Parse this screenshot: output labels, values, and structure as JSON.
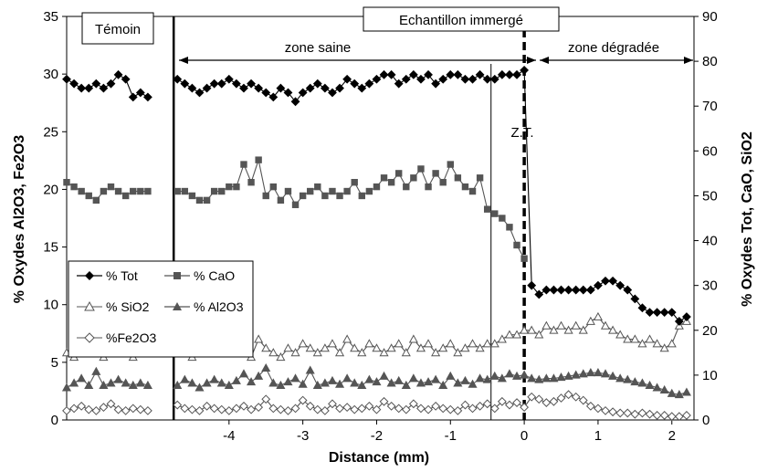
{
  "chart_data": {
    "type": "line",
    "title": "",
    "xlabel": "Distance (mm)",
    "ylabel_left": "% Oxydes Al2O3, Fe2O3",
    "ylabel_right": "% Oxydes Tot, CaO, SiO2",
    "xlim": [
      -6.2,
      2.3
    ],
    "ylim_left": [
      0,
      35
    ],
    "ylim_right": [
      0,
      90
    ],
    "xticks": [
      -4,
      -3,
      -2,
      -1,
      0,
      1,
      2
    ],
    "xtick_labels": [
      "-4",
      "-3",
      "-2",
      "-1",
      "0",
      "1",
      "2"
    ],
    "yticks_left": [
      0,
      5,
      10,
      15,
      20,
      25,
      30,
      35
    ],
    "yticks_left_labels": [
      "0",
      "5",
      "10",
      "15",
      "20",
      "25",
      "30",
      "35"
    ],
    "yticks_right": [
      0,
      10,
      20,
      30,
      40,
      50,
      60,
      70,
      80,
      90
    ],
    "yticks_right_labels": [
      "0",
      "10",
      "20",
      "30",
      "40",
      "50",
      "60",
      "70",
      "80",
      "90"
    ],
    "grid": false,
    "legend_position": "left-middle",
    "annotations": {
      "temoin": "Témoin",
      "echantillon": "Echantillon immergé",
      "zone_saine": "zone saine",
      "zone_degradee": "zone dégradée",
      "zt": "Z.T."
    },
    "reference_lines": {
      "temoin_boundary": -4.75,
      "zt_line": -0.45,
      "degradation_front": 0
    },
    "series": [
      {
        "name": "% Tot",
        "axis": "right",
        "marker": "diamond-filled",
        "color": "#000000",
        "x": [
          -6.2,
          -6.1,
          -6.0,
          -5.9,
          -5.8,
          -5.7,
          -5.6,
          -5.5,
          -5.4,
          -5.3,
          -5.2,
          -5.1,
          -5.0,
          -4.9,
          -4.8,
          -4.7,
          -4.6,
          -4.5,
          -4.4,
          -4.3,
          -4.2,
          -4.1,
          -4.0,
          -3.9,
          -3.8,
          -3.7,
          -3.6,
          -3.5,
          -3.4,
          -3.3,
          -3.2,
          -3.1,
          -3.0,
          -2.9,
          -2.8,
          -2.7,
          -2.6,
          -2.5,
          -2.4,
          -2.3,
          -2.2,
          -2.1,
          -2.0,
          -1.9,
          -1.8,
          -1.7,
          -1.6,
          -1.5,
          -1.4,
          -1.3,
          -1.2,
          -1.1,
          -1.0,
          -0.9,
          -0.8,
          -0.7,
          -0.6,
          -0.5,
          -0.4,
          -0.3,
          -0.2,
          -0.1,
          0.0,
          0.1,
          0.2,
          0.3,
          0.4,
          0.5,
          0.6,
          0.7,
          0.8,
          0.9,
          1.0,
          1.1,
          1.2,
          1.3,
          1.4,
          1.5,
          1.6,
          1.7,
          1.8,
          1.9,
          2.0,
          2.1,
          2.2
        ],
        "y": [
          76,
          75,
          74,
          74,
          75,
          74,
          75,
          77,
          76,
          72,
          73,
          72,
          null,
          null,
          null,
          76,
          75,
          74,
          73,
          74,
          75,
          75,
          76,
          75,
          74,
          75,
          74,
          73,
          72,
          74,
          73,
          71,
          73,
          74,
          75,
          74,
          73,
          74,
          76,
          75,
          74,
          75,
          76,
          77,
          77,
          75,
          76,
          77,
          76,
          77,
          75,
          76,
          77,
          77,
          76,
          76,
          77,
          76,
          76,
          77,
          77,
          77,
          78,
          30,
          28,
          29,
          29,
          29,
          29,
          29,
          29,
          29,
          30,
          31,
          31,
          30,
          29,
          27,
          25,
          24,
          24,
          24,
          24,
          22,
          23
        ]
      },
      {
        "name": "% CaO",
        "axis": "right",
        "marker": "square-filled",
        "color": "#555555",
        "x": [
          -6.2,
          -6.1,
          -6.0,
          -5.9,
          -5.8,
          -5.7,
          -5.6,
          -5.5,
          -5.4,
          -5.3,
          -5.2,
          -5.1,
          -5.0,
          -4.9,
          -4.8,
          -4.7,
          -4.6,
          -4.5,
          -4.4,
          -4.3,
          -4.2,
          -4.1,
          -4.0,
          -3.9,
          -3.8,
          -3.7,
          -3.6,
          -3.5,
          -3.4,
          -3.3,
          -3.2,
          -3.1,
          -3.0,
          -2.9,
          -2.8,
          -2.7,
          -2.6,
          -2.5,
          -2.4,
          -2.3,
          -2.2,
          -2.1,
          -2.0,
          -1.9,
          -1.8,
          -1.7,
          -1.6,
          -1.5,
          -1.4,
          -1.3,
          -1.2,
          -1.1,
          -1.0,
          -0.9,
          -0.8,
          -0.7,
          -0.6,
          -0.5,
          -0.4,
          -0.3,
          -0.2,
          -0.1,
          0.0
        ],
        "y": [
          53,
          52,
          51,
          50,
          49,
          51,
          52,
          51,
          50,
          51,
          51,
          51,
          null,
          null,
          null,
          51,
          51,
          50,
          49,
          49,
          51,
          51,
          52,
          52,
          57,
          53,
          58,
          50,
          52,
          49,
          51,
          48,
          50,
          51,
          52,
          50,
          51,
          50,
          51,
          53,
          50,
          51,
          52,
          54,
          53,
          55,
          52,
          54,
          56,
          52,
          55,
          53,
          57,
          54,
          52,
          51,
          54,
          47,
          46,
          45,
          43,
          39,
          36
        ]
      },
      {
        "name": "% SiO2",
        "axis": "right",
        "marker": "triangle-open",
        "color": "#555555",
        "x": [
          -6.2,
          -6.1,
          -6.0,
          -5.9,
          -5.8,
          -5.7,
          -5.6,
          -5.5,
          -5.4,
          -5.3,
          -5.2,
          -5.1,
          -5.0,
          -4.9,
          -4.8,
          -4.7,
          -4.6,
          -4.5,
          -4.4,
          -4.3,
          -4.2,
          -4.1,
          -4.0,
          -3.9,
          -3.8,
          -3.7,
          -3.6,
          -3.5,
          -3.4,
          -3.3,
          -3.2,
          -3.1,
          -3.0,
          -2.9,
          -2.8,
          -2.7,
          -2.6,
          -2.5,
          -2.4,
          -2.3,
          -2.2,
          -2.1,
          -2.0,
          -1.9,
          -1.8,
          -1.7,
          -1.6,
          -1.5,
          -1.4,
          -1.3,
          -1.2,
          -1.1,
          -1.0,
          -0.9,
          -0.8,
          -0.7,
          -0.6,
          -0.5,
          -0.4,
          -0.3,
          -0.2,
          -0.1,
          0.0,
          0.1,
          0.2,
          0.3,
          0.4,
          0.5,
          0.6,
          0.7,
          0.8,
          0.9,
          1.0,
          1.1,
          1.2,
          1.3,
          1.4,
          1.5,
          1.6,
          1.7,
          1.8,
          1.9,
          2.0,
          2.1,
          2.2
        ],
        "y": [
          15,
          14,
          16,
          17,
          15,
          14,
          18,
          16,
          15,
          14,
          16,
          15,
          null,
          null,
          null,
          16,
          15,
          14,
          16,
          17,
          15,
          16,
          17,
          16,
          15,
          14,
          18,
          16,
          15,
          14,
          16,
          15,
          17,
          16,
          15,
          16,
          17,
          15,
          18,
          16,
          15,
          17,
          16,
          15,
          16,
          17,
          15,
          18,
          16,
          17,
          15,
          16,
          17,
          15,
          16,
          17,
          16,
          17,
          17,
          18,
          19,
          19,
          20,
          20,
          19,
          21,
          20,
          21,
          20,
          21,
          20,
          22,
          23,
          21,
          20,
          19,
          18,
          18,
          17,
          18,
          17,
          16,
          17,
          21,
          22
        ]
      },
      {
        "name": "% Al2O3",
        "axis": "left",
        "marker": "triangle-filled",
        "color": "#555555",
        "x": [
          -6.2,
          -6.1,
          -6.0,
          -5.9,
          -5.8,
          -5.7,
          -5.6,
          -5.5,
          -5.4,
          -5.3,
          -5.2,
          -5.1,
          -5.0,
          -4.9,
          -4.8,
          -4.7,
          -4.6,
          -4.5,
          -4.4,
          -4.3,
          -4.2,
          -4.1,
          -4.0,
          -3.9,
          -3.8,
          -3.7,
          -3.6,
          -3.5,
          -3.4,
          -3.3,
          -3.2,
          -3.1,
          -3.0,
          -2.9,
          -2.8,
          -2.7,
          -2.6,
          -2.5,
          -2.4,
          -2.3,
          -2.2,
          -2.1,
          -2.0,
          -1.9,
          -1.8,
          -1.7,
          -1.6,
          -1.5,
          -1.4,
          -1.3,
          -1.2,
          -1.1,
          -1.0,
          -0.9,
          -0.8,
          -0.7,
          -0.6,
          -0.5,
          -0.4,
          -0.3,
          -0.2,
          -0.1,
          0.0,
          0.1,
          0.2,
          0.3,
          0.4,
          0.5,
          0.6,
          0.7,
          0.8,
          0.9,
          1.0,
          1.1,
          1.2,
          1.3,
          1.4,
          1.5,
          1.6,
          1.7,
          1.8,
          1.9,
          2.0,
          2.1,
          2.2
        ],
        "y": [
          2.8,
          3.2,
          3.6,
          3.0,
          4.2,
          3.0,
          3.2,
          3.5,
          3.2,
          3.0,
          3.2,
          3.0,
          null,
          null,
          null,
          3.0,
          3.5,
          3.2,
          2.8,
          3.2,
          3.5,
          3.2,
          3.0,
          3.4,
          4.0,
          3.3,
          3.8,
          4.5,
          3.2,
          3.0,
          3.3,
          3.6,
          3.1,
          4.3,
          3.0,
          3.2,
          3.4,
          3.1,
          3.6,
          3.2,
          3.0,
          3.5,
          3.3,
          3.8,
          3.2,
          3.4,
          3.0,
          3.6,
          3.2,
          3.3,
          3.5,
          3.0,
          3.8,
          3.2,
          3.4,
          3.1,
          3.6,
          3.5,
          3.8,
          3.6,
          4.0,
          3.8,
          3.9,
          3.6,
          3.5,
          3.6,
          3.6,
          3.7,
          3.8,
          3.9,
          4.0,
          4.1,
          4.1,
          4.0,
          3.8,
          3.6,
          3.5,
          3.3,
          3.2,
          3.0,
          2.8,
          2.6,
          2.3,
          2.2,
          2.4
        ]
      },
      {
        "name": "%Fe2O3",
        "axis": "left",
        "marker": "diamond-open",
        "color": "#555555",
        "x": [
          -6.2,
          -6.1,
          -6.0,
          -5.9,
          -5.8,
          -5.7,
          -5.6,
          -5.5,
          -5.4,
          -5.3,
          -5.2,
          -5.1,
          -5.0,
          -4.9,
          -4.8,
          -4.7,
          -4.6,
          -4.5,
          -4.4,
          -4.3,
          -4.2,
          -4.1,
          -4.0,
          -3.9,
          -3.8,
          -3.7,
          -3.6,
          -3.5,
          -3.4,
          -3.3,
          -3.2,
          -3.1,
          -3.0,
          -2.9,
          -2.8,
          -2.7,
          -2.6,
          -2.5,
          -2.4,
          -2.3,
          -2.2,
          -2.1,
          -2.0,
          -1.9,
          -1.8,
          -1.7,
          -1.6,
          -1.5,
          -1.4,
          -1.3,
          -1.2,
          -1.1,
          -1.0,
          -0.9,
          -0.8,
          -0.7,
          -0.6,
          -0.5,
          -0.4,
          -0.3,
          -0.2,
          -0.1,
          0.0,
          0.1,
          0.2,
          0.3,
          0.4,
          0.5,
          0.6,
          0.7,
          0.8,
          0.9,
          1.0,
          1.1,
          1.2,
          1.3,
          1.4,
          1.5,
          1.6,
          1.7,
          1.8,
          1.9,
          2.0,
          2.1,
          2.2
        ],
        "y": [
          0.8,
          1.0,
          1.2,
          0.9,
          0.8,
          1.1,
          1.4,
          0.9,
          0.8,
          1.0,
          0.9,
          0.8,
          null,
          null,
          null,
          1.3,
          1.0,
          0.9,
          0.8,
          1.2,
          1.0,
          0.9,
          0.8,
          1.0,
          1.2,
          0.9,
          1.1,
          1.8,
          1.0,
          0.9,
          0.8,
          1.0,
          1.7,
          1.2,
          0.9,
          0.8,
          1.4,
          1.0,
          1.1,
          0.9,
          1.0,
          1.2,
          0.9,
          1.6,
          1.2,
          1.0,
          0.9,
          1.4,
          1.0,
          0.9,
          1.2,
          1.0,
          0.9,
          0.8,
          1.3,
          1.0,
          1.2,
          1.4,
          1.0,
          1.6,
          1.3,
          1.5,
          1.1,
          2.0,
          1.8,
          1.5,
          1.6,
          1.9,
          2.2,
          2.0,
          1.7,
          1.2,
          1.0,
          0.8,
          0.7,
          0.6,
          0.6,
          0.5,
          0.6,
          0.5,
          0.4,
          0.4,
          0.3,
          0.3,
          0.4
        ]
      }
    ]
  }
}
